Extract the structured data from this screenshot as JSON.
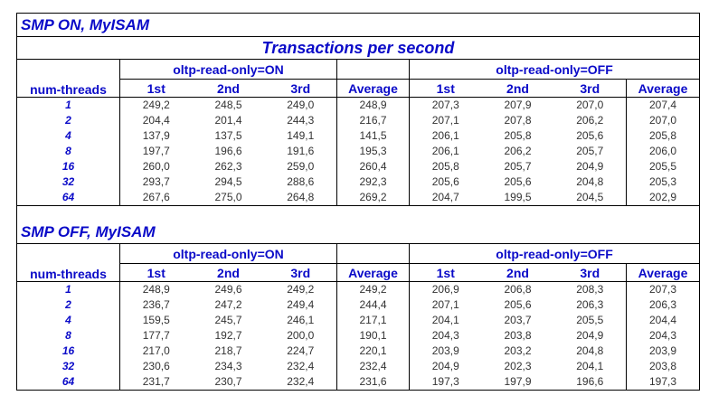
{
  "subtitle": "Transactions per second",
  "headers": {
    "num_threads": "num-threads",
    "group_on": "oltp-read-only=ON",
    "group_off": "oltp-read-only=OFF",
    "cols": [
      "1st",
      "2nd",
      "3rd",
      "Average"
    ]
  },
  "sections": [
    {
      "title": "SMP ON, MyISAM",
      "rows": [
        {
          "threads": "1",
          "on": [
            "249,2",
            "248,5",
            "249,0",
            "248,9"
          ],
          "off": [
            "207,3",
            "207,9",
            "207,0",
            "207,4"
          ]
        },
        {
          "threads": "2",
          "on": [
            "204,4",
            "201,4",
            "244,3",
            "216,7"
          ],
          "off": [
            "207,1",
            "207,8",
            "206,2",
            "207,0"
          ]
        },
        {
          "threads": "4",
          "on": [
            "137,9",
            "137,5",
            "149,1",
            "141,5"
          ],
          "off": [
            "206,1",
            "205,8",
            "205,6",
            "205,8"
          ]
        },
        {
          "threads": "8",
          "on": [
            "197,7",
            "196,6",
            "191,6",
            "195,3"
          ],
          "off": [
            "206,1",
            "206,2",
            "205,7",
            "206,0"
          ]
        },
        {
          "threads": "16",
          "on": [
            "260,0",
            "262,3",
            "259,0",
            "260,4"
          ],
          "off": [
            "205,8",
            "205,7",
            "204,9",
            "205,5"
          ]
        },
        {
          "threads": "32",
          "on": [
            "293,7",
            "294,5",
            "288,6",
            "292,3"
          ],
          "off": [
            "205,6",
            "205,6",
            "204,8",
            "205,3"
          ]
        },
        {
          "threads": "64",
          "on": [
            "267,6",
            "275,0",
            "264,8",
            "269,2"
          ],
          "off": [
            "204,7",
            "199,5",
            "204,5",
            "202,9"
          ]
        }
      ]
    },
    {
      "title": "SMP OFF, MyISAM",
      "rows": [
        {
          "threads": "1",
          "on": [
            "248,9",
            "249,6",
            "249,2",
            "249,2"
          ],
          "off": [
            "206,9",
            "206,8",
            "208,3",
            "207,3"
          ]
        },
        {
          "threads": "2",
          "on": [
            "236,7",
            "247,2",
            "249,4",
            "244,4"
          ],
          "off": [
            "207,1",
            "205,6",
            "206,3",
            "206,3"
          ]
        },
        {
          "threads": "4",
          "on": [
            "159,5",
            "245,7",
            "246,1",
            "217,1"
          ],
          "off": [
            "204,1",
            "203,7",
            "205,5",
            "204,4"
          ]
        },
        {
          "threads": "8",
          "on": [
            "177,7",
            "192,7",
            "200,0",
            "190,1"
          ],
          "off": [
            "204,3",
            "203,8",
            "204,9",
            "204,3"
          ]
        },
        {
          "threads": "16",
          "on": [
            "217,0",
            "218,7",
            "224,7",
            "220,1"
          ],
          "off": [
            "203,9",
            "203,2",
            "204,8",
            "203,9"
          ]
        },
        {
          "threads": "32",
          "on": [
            "230,6",
            "234,3",
            "232,4",
            "232,4"
          ],
          "off": [
            "204,9",
            "202,3",
            "204,1",
            "203,8"
          ]
        },
        {
          "threads": "64",
          "on": [
            "231,7",
            "230,7",
            "232,4",
            "231,6"
          ],
          "off": [
            "197,3",
            "197,9",
            "196,6",
            "197,3"
          ]
        }
      ]
    }
  ],
  "colors": {
    "header_text": "#0a0ac8",
    "value_text": "#333333",
    "border": "#000000"
  }
}
